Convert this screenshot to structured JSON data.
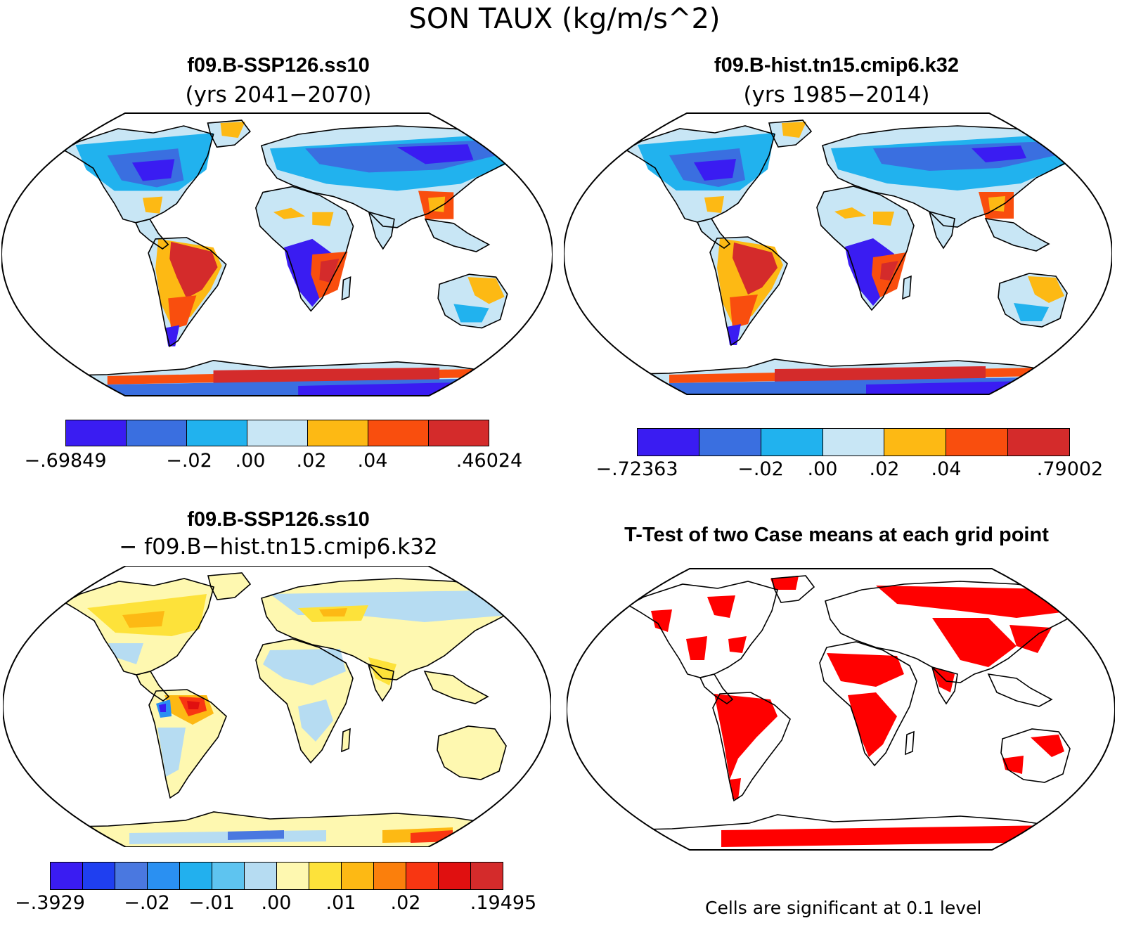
{
  "title": "SON TAUX (kg/m/s^2)",
  "panels": [
    {
      "title": "f09.B-SSP126.ss10",
      "subtitle": "(yrs 2041−2070)",
      "colorbar": {
        "colors": [
          "#3a1cf2",
          "#3a6fe0",
          "#21b2ee",
          "#c8e6f5",
          "#fdb914",
          "#f94e0e",
          "#d42b2b"
        ],
        "labels": [
          "−.69849",
          "−.02",
          ".00",
          ".02",
          ".04",
          ".46024"
        ]
      }
    },
    {
      "title": "f09.B-hist.tn15.cmip6.k32",
      "subtitle": "(yrs 1985−2014)",
      "colorbar": {
        "colors": [
          "#3a1cf2",
          "#3a6fe0",
          "#21b2ee",
          "#c8e6f5",
          "#fdb914",
          "#f94e0e",
          "#d42b2b"
        ],
        "labels": [
          "−.72363",
          "−.02",
          ".00",
          ".02",
          ".04",
          ".79002"
        ]
      }
    },
    {
      "title": "f09.B-SSP126.ss10",
      "subtitle": "− f09.B−hist.tn15.cmip6.k32",
      "colorbar": {
        "colors": [
          "#3a1cf2",
          "#1f3ff0",
          "#4a78e0",
          "#2a90f2",
          "#22b0ee",
          "#5ec4f0",
          "#b6dcf2",
          "#fef8b0",
          "#fde23a",
          "#fdb914",
          "#fb7f0c",
          "#f83612",
          "#e01010",
          "#d42b2b"
        ],
        "labels": [
          "−.3929",
          "−.02",
          "−.01",
          ".00",
          ".01",
          ".02",
          ".19495"
        ]
      }
    },
    {
      "title": "T-Test of two Case means at each grid point",
      "note": "Cells are significant at 0.1 level",
      "significant_color": "#ff0000"
    }
  ]
}
